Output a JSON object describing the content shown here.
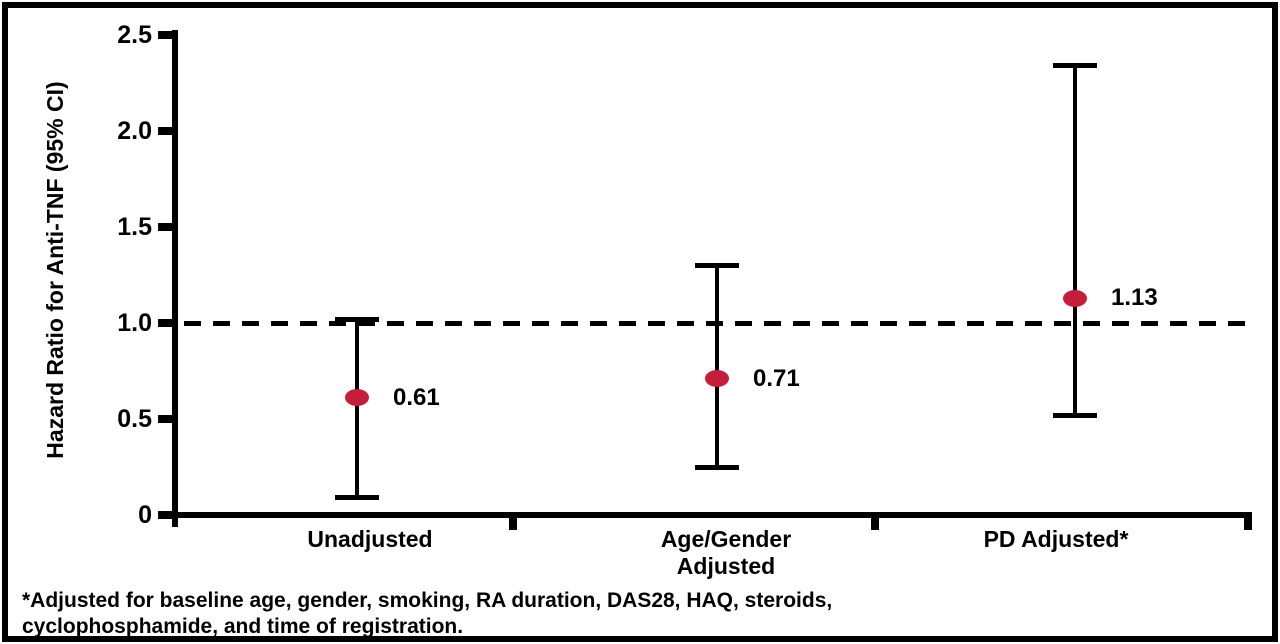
{
  "figure": {
    "footnote_line1": "*Adjusted for baseline age, gender, smoking, RA duration, DAS28, HAQ, steroids,",
    "footnote_line2": "cyclophosphamide, and time of registration."
  },
  "chart_data": {
    "type": "scatter",
    "subtype": "forest-plot-errorbars",
    "title": "",
    "xlabel": "",
    "ylabel": "Hazard Ratio for Anti-TNF (95% CI)",
    "categories": [
      "Unadjusted",
      "Age/Gender\nAdjusted",
      "PD Adjusted*"
    ],
    "series": [
      {
        "name": "Hazard Ratio",
        "values": [
          0.61,
          0.71,
          1.13
        ],
        "ci_low": [
          0.09,
          0.25,
          0.52
        ],
        "ci_high": [
          1.02,
          1.3,
          2.34
        ]
      }
    ],
    "value_labels": [
      "0.61",
      "0.71",
      "1.13"
    ],
    "yticks": [
      0,
      0.5,
      1.0,
      1.5,
      2.0,
      2.5
    ],
    "ytick_labels": [
      "0",
      "0.5",
      "1.0",
      "1.5",
      "2.0",
      "2.5"
    ],
    "ylim": [
      0,
      2.5
    ],
    "reference_line": {
      "y": 1.0,
      "style": "dashed",
      "color": "#000000"
    },
    "grid": false,
    "legend": false,
    "marker_color": "#C41E3A",
    "axis_color": "#000000",
    "footnote": "*Adjusted for baseline age, gender, smoking, RA duration, DAS28, HAQ, steroids, cyclophosphamide, and time of registration."
  }
}
